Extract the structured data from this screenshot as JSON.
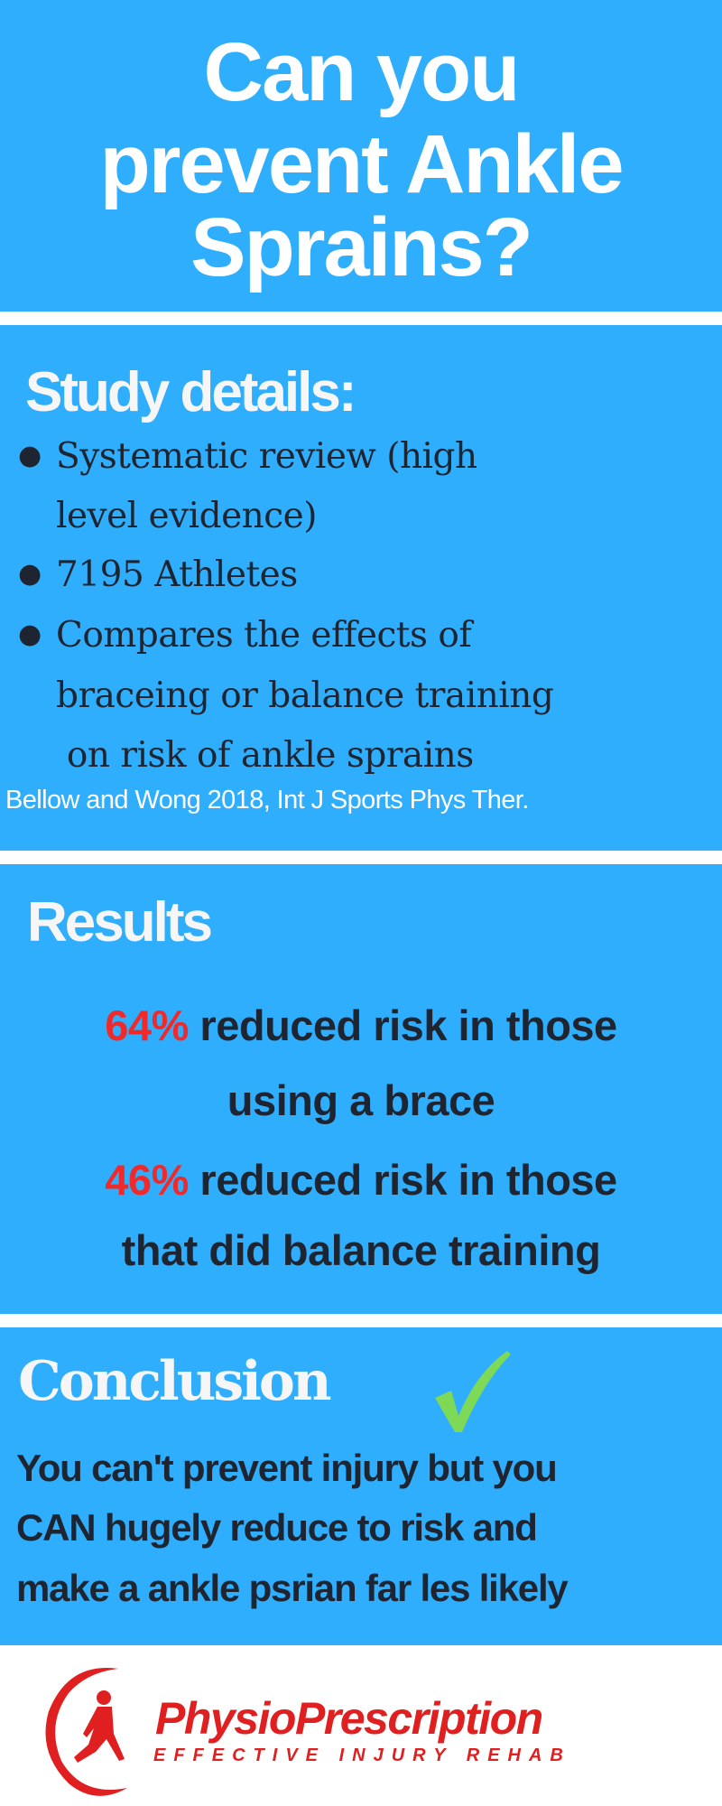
{
  "title": {
    "lines": [
      "Can  you",
      "prevent Ankle",
      "Sprains?"
    ]
  },
  "study": {
    "heading": "Study details:",
    "bullets": [
      {
        "lines": [
          "Systematic review (high",
          "level evidence)"
        ]
      },
      {
        "lines": [
          "7195 Athletes"
        ]
      },
      {
        "lines": [
          "Compares the effects of",
          "braceing or balance training",
          " on risk of ankle sprains"
        ]
      }
    ],
    "citation": "Bellow and Wong 2018, Int J Sports Phys Ther."
  },
  "results": {
    "heading": "Results",
    "items": [
      {
        "percent": "64%",
        "text": " reduced risk in those",
        "line2": "using a brace"
      },
      {
        "percent": "46%",
        "text": " reduced risk in those",
        "line2": "that did balance training"
      }
    ]
  },
  "conclusion": {
    "heading": "Conclusion",
    "icon": "checkmark-icon",
    "lines": [
      "You can't prevent injury but you",
      "CAN hugely reduce to risk and",
      "make a ankle psrian far les likely"
    ]
  },
  "logo": {
    "name": "PhysioPrescription",
    "tagline": "EFFECTIVE INJURY REHAB"
  },
  "colors": {
    "background": "#2eaefc",
    "highlight": "#f02a2a",
    "check": "#7ed957",
    "logo": "#e02020"
  }
}
